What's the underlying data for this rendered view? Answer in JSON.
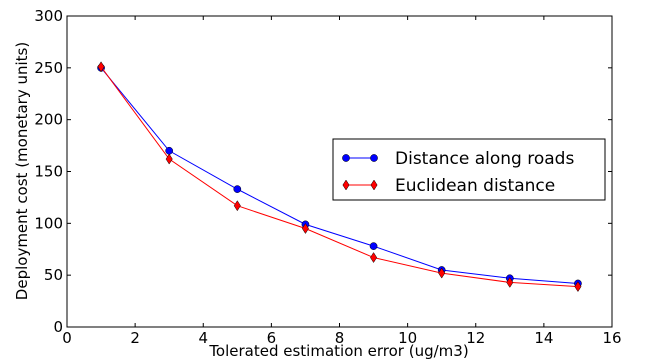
{
  "chart_data": {
    "type": "line",
    "title": "",
    "xlabel": "Tolerated estimation error (ug/m3)",
    "ylabel": "Deployment cost (monetary units)",
    "xlim": [
      0,
      16
    ],
    "ylim": [
      0,
      300
    ],
    "xticks": [
      0,
      2,
      4,
      6,
      8,
      10,
      12,
      14,
      16
    ],
    "yticks": [
      0,
      50,
      100,
      150,
      200,
      250,
      300
    ],
    "grid": false,
    "legend_position": "center-right",
    "series": [
      {
        "name": "Distance along roads",
        "color": "#0000ff",
        "marker": "circle",
        "x": [
          1,
          3,
          5,
          7,
          9,
          11,
          13,
          15
        ],
        "y": [
          250,
          170,
          133,
          99,
          78,
          55,
          47,
          42
        ]
      },
      {
        "name": "Euclidean distance",
        "color": "#ff0000",
        "marker": "diamond",
        "x": [
          1,
          3,
          5,
          7,
          9,
          11,
          13,
          15
        ],
        "y": [
          251,
          162,
          117,
          95,
          67,
          52,
          43,
          39
        ]
      }
    ]
  }
}
